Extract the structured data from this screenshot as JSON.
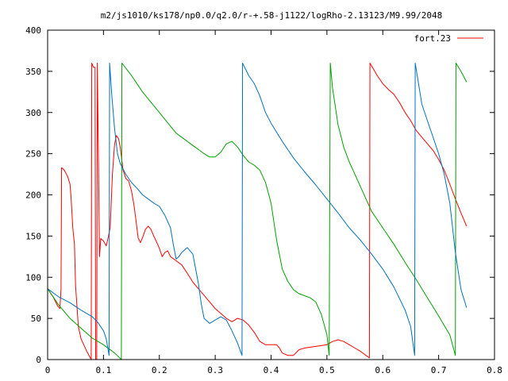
{
  "chart_data": {
    "type": "line",
    "title": "m2/js1010/ks178/np0.0/q2.0/r-+.58-j1122/logRho-2.13123/M9.99/2048",
    "xlabel": "",
    "ylabel": "",
    "xlim": [
      0,
      0.8
    ],
    "ylim": [
      0,
      400
    ],
    "xticks": [
      "0",
      "0.1",
      "0.2",
      "0.3",
      "0.4",
      "0.5",
      "0.6",
      "0.7",
      "0.8"
    ],
    "yticks": [
      "0",
      "50",
      "100",
      "150",
      "200",
      "250",
      "300",
      "350",
      "400"
    ],
    "xtick_values": [
      0,
      0.1,
      0.2,
      0.3,
      0.4,
      0.5,
      0.6,
      0.7,
      0.8
    ],
    "ytick_values": [
      0,
      50,
      100,
      150,
      200,
      250,
      300,
      350,
      400
    ],
    "grid": false,
    "legend_position": "top-right",
    "series": [
      {
        "name": "fort.23",
        "color": "#ff0000",
        "points": [
          [
            0,
            86
          ],
          [
            0.01,
            76
          ],
          [
            0.018,
            65
          ],
          [
            0.022,
            62
          ],
          [
            0.024,
            86
          ],
          [
            0.025,
            233
          ],
          [
            0.03,
            230
          ],
          [
            0.036,
            222
          ],
          [
            0.04,
            213
          ],
          [
            0.042,
            196
          ],
          [
            0.045,
            160
          ],
          [
            0.048,
            140
          ],
          [
            0.05,
            90
          ],
          [
            0.055,
            40
          ],
          [
            0.06,
            25
          ],
          [
            0.07,
            10
          ],
          [
            0.078,
            0
          ],
          [
            0.079,
            360
          ],
          [
            0.082,
            355
          ],
          [
            0.085,
            355
          ],
          [
            0.086,
            0
          ],
          [
            0.088,
            0
          ],
          [
            0.089,
            360
          ],
          [
            0.093,
            125
          ],
          [
            0.095,
            147
          ],
          [
            0.1,
            144
          ],
          [
            0.105,
            138
          ],
          [
            0.108,
            147
          ],
          [
            0.112,
            160
          ],
          [
            0.116,
            225
          ],
          [
            0.12,
            262
          ],
          [
            0.123,
            272
          ],
          [
            0.127,
            268
          ],
          [
            0.13,
            258
          ],
          [
            0.135,
            230
          ],
          [
            0.14,
            220
          ],
          [
            0.145,
            217
          ],
          [
            0.15,
            205
          ],
          [
            0.154,
            190
          ],
          [
            0.158,
            170
          ],
          [
            0.162,
            148
          ],
          [
            0.166,
            142
          ],
          [
            0.17,
            148
          ],
          [
            0.175,
            158
          ],
          [
            0.18,
            162
          ],
          [
            0.185,
            158
          ],
          [
            0.19,
            150
          ],
          [
            0.195,
            143
          ],
          [
            0.2,
            135
          ],
          [
            0.205,
            125
          ],
          [
            0.21,
            130
          ],
          [
            0.215,
            132
          ],
          [
            0.22,
            125
          ],
          [
            0.23,
            120
          ],
          [
            0.24,
            115
          ],
          [
            0.25,
            105
          ],
          [
            0.26,
            94
          ],
          [
            0.27,
            86
          ],
          [
            0.28,
            78
          ],
          [
            0.29,
            70
          ],
          [
            0.3,
            62
          ],
          [
            0.31,
            56
          ],
          [
            0.32,
            50
          ],
          [
            0.33,
            46
          ],
          [
            0.34,
            50
          ],
          [
            0.35,
            48
          ],
          [
            0.36,
            42
          ],
          [
            0.37,
            33
          ],
          [
            0.38,
            22
          ],
          [
            0.39,
            18
          ],
          [
            0.4,
            18
          ],
          [
            0.41,
            18
          ],
          [
            0.415,
            14
          ],
          [
            0.42,
            8
          ],
          [
            0.43,
            5
          ],
          [
            0.44,
            5
          ],
          [
            0.45,
            12
          ],
          [
            0.46,
            14
          ],
          [
            0.47,
            15
          ],
          [
            0.48,
            16
          ],
          [
            0.49,
            17
          ],
          [
            0.5,
            18
          ],
          [
            0.51,
            22
          ],
          [
            0.52,
            24
          ],
          [
            0.53,
            22
          ],
          [
            0.54,
            18
          ],
          [
            0.55,
            14
          ],
          [
            0.56,
            10
          ],
          [
            0.57,
            5
          ],
          [
            0.576,
            2
          ],
          [
            0.577,
            360
          ],
          [
            0.59,
            345
          ],
          [
            0.6,
            335
          ],
          [
            0.61,
            328
          ],
          [
            0.62,
            322
          ],
          [
            0.63,
            312
          ],
          [
            0.64,
            300
          ],
          [
            0.65,
            290
          ],
          [
            0.66,
            278
          ],
          [
            0.67,
            270
          ],
          [
            0.68,
            262
          ],
          [
            0.69,
            254
          ],
          [
            0.7,
            243
          ],
          [
            0.71,
            230
          ],
          [
            0.72,
            213
          ],
          [
            0.73,
            195
          ],
          [
            0.74,
            178
          ],
          [
            0.75,
            162
          ]
        ]
      },
      {
        "name": "",
        "color": "#00a000",
        "points": [
          [
            0,
            86
          ],
          [
            0.02,
            66
          ],
          [
            0.04,
            50
          ],
          [
            0.06,
            38
          ],
          [
            0.08,
            26
          ],
          [
            0.1,
            18
          ],
          [
            0.12,
            8
          ],
          [
            0.132,
            0
          ],
          [
            0.133,
            360
          ],
          [
            0.15,
            345
          ],
          [
            0.17,
            325
          ],
          [
            0.2,
            300
          ],
          [
            0.23,
            275
          ],
          [
            0.26,
            260
          ],
          [
            0.28,
            250
          ],
          [
            0.29,
            246
          ],
          [
            0.3,
            246
          ],
          [
            0.31,
            252
          ],
          [
            0.32,
            262
          ],
          [
            0.33,
            265
          ],
          [
            0.34,
            258
          ],
          [
            0.35,
            248
          ],
          [
            0.36,
            240
          ],
          [
            0.37,
            236
          ],
          [
            0.38,
            230
          ],
          [
            0.39,
            215
          ],
          [
            0.4,
            190
          ],
          [
            0.41,
            145
          ],
          [
            0.42,
            110
          ],
          [
            0.43,
            95
          ],
          [
            0.44,
            85
          ],
          [
            0.45,
            80
          ],
          [
            0.47,
            75
          ],
          [
            0.48,
            70
          ],
          [
            0.49,
            55
          ],
          [
            0.5,
            30
          ],
          [
            0.504,
            5
          ],
          [
            0.506,
            360
          ],
          [
            0.51,
            330
          ],
          [
            0.52,
            285
          ],
          [
            0.53,
            258
          ],
          [
            0.54,
            240
          ],
          [
            0.55,
            225
          ],
          [
            0.56,
            210
          ],
          [
            0.57,
            195
          ],
          [
            0.58,
            180
          ],
          [
            0.6,
            160
          ],
          [
            0.62,
            140
          ],
          [
            0.64,
            118
          ],
          [
            0.66,
            97
          ],
          [
            0.68,
            75
          ],
          [
            0.7,
            53
          ],
          [
            0.72,
            30
          ],
          [
            0.73,
            5
          ],
          [
            0.731,
            360
          ],
          [
            0.74,
            350
          ],
          [
            0.75,
            337
          ]
        ]
      },
      {
        "name": "",
        "color": "#0070c0",
        "points": [
          [
            0,
            86
          ],
          [
            0.02,
            76
          ],
          [
            0.04,
            69
          ],
          [
            0.06,
            60
          ],
          [
            0.08,
            52
          ],
          [
            0.09,
            45
          ],
          [
            0.1,
            35
          ],
          [
            0.105,
            25
          ],
          [
            0.11,
            5
          ],
          [
            0.111,
            360
          ],
          [
            0.115,
            320
          ],
          [
            0.12,
            280
          ],
          [
            0.125,
            250
          ],
          [
            0.13,
            238
          ],
          [
            0.14,
            225
          ],
          [
            0.15,
            215
          ],
          [
            0.16,
            208
          ],
          [
            0.17,
            200
          ],
          [
            0.18,
            195
          ],
          [
            0.19,
            190
          ],
          [
            0.2,
            186
          ],
          [
            0.21,
            175
          ],
          [
            0.22,
            160
          ],
          [
            0.225,
            140
          ],
          [
            0.23,
            122
          ],
          [
            0.235,
            125
          ],
          [
            0.24,
            130
          ],
          [
            0.25,
            136
          ],
          [
            0.26,
            128
          ],
          [
            0.265,
            110
          ],
          [
            0.27,
            92
          ],
          [
            0.275,
            68
          ],
          [
            0.28,
            50
          ],
          [
            0.29,
            44
          ],
          [
            0.3,
            48
          ],
          [
            0.31,
            52
          ],
          [
            0.32,
            48
          ],
          [
            0.33,
            35
          ],
          [
            0.34,
            20
          ],
          [
            0.348,
            5
          ],
          [
            0.349,
            360
          ],
          [
            0.36,
            345
          ],
          [
            0.37,
            335
          ],
          [
            0.38,
            320
          ],
          [
            0.39,
            300
          ],
          [
            0.4,
            287
          ],
          [
            0.42,
            265
          ],
          [
            0.44,
            245
          ],
          [
            0.46,
            228
          ],
          [
            0.48,
            212
          ],
          [
            0.5,
            195
          ],
          [
            0.52,
            178
          ],
          [
            0.54,
            160
          ],
          [
            0.56,
            145
          ],
          [
            0.58,
            128
          ],
          [
            0.6,
            110
          ],
          [
            0.62,
            88
          ],
          [
            0.64,
            60
          ],
          [
            0.65,
            40
          ],
          [
            0.657,
            5
          ],
          [
            0.658,
            360
          ],
          [
            0.67,
            310
          ],
          [
            0.68,
            290
          ],
          [
            0.69,
            270
          ],
          [
            0.7,
            250
          ],
          [
            0.71,
            225
          ],
          [
            0.72,
            190
          ],
          [
            0.73,
            130
          ],
          [
            0.74,
            85
          ],
          [
            0.75,
            63
          ]
        ]
      }
    ]
  }
}
